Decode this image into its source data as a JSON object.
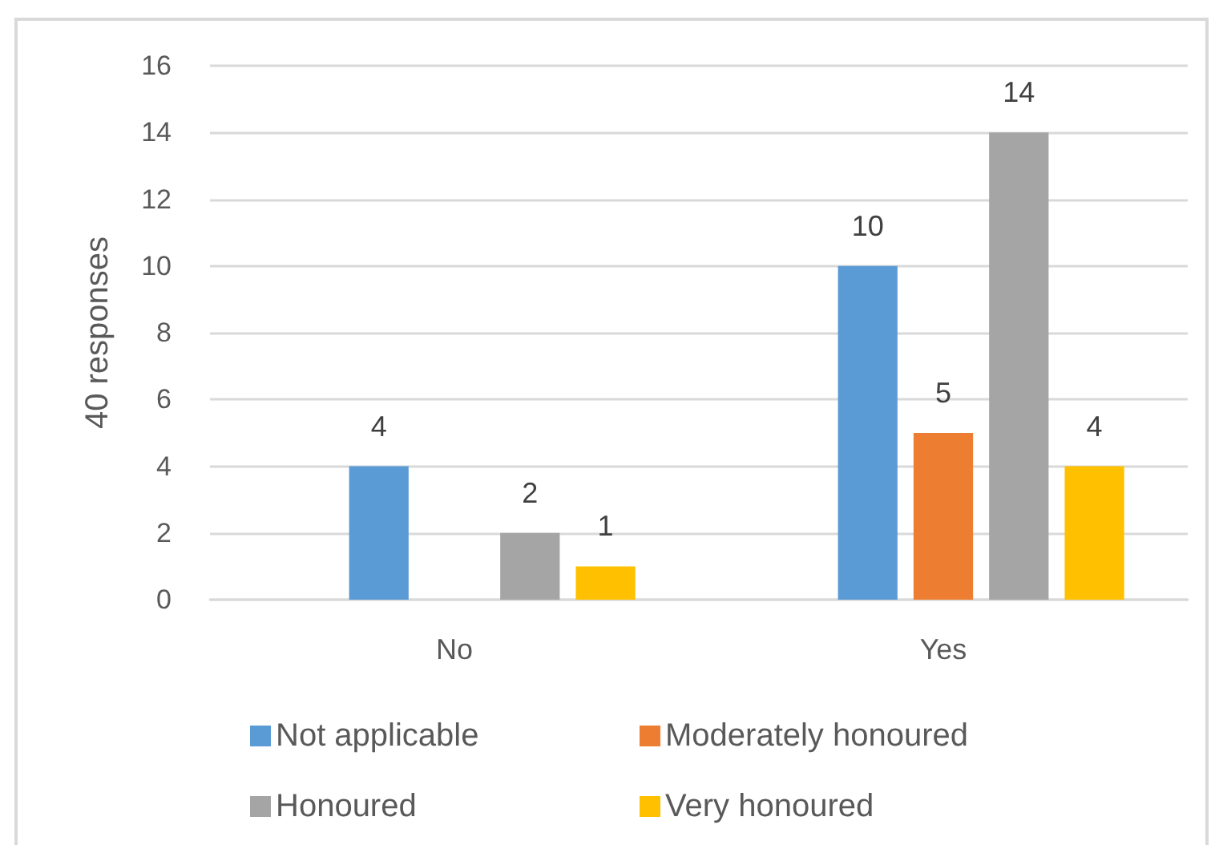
{
  "chart_data": {
    "type": "bar",
    "ylabel": "40 responses",
    "categories": [
      "No",
      "Yes"
    ],
    "series": [
      {
        "name": "Not applicable",
        "color": "#5b9bd5",
        "values": [
          4,
          10
        ]
      },
      {
        "name": "Moderately honoured",
        "color": "#ed7d31",
        "values": [
          null,
          5
        ]
      },
      {
        "name": "Honoured",
        "color": "#a5a5a5",
        "values": [
          2,
          14
        ]
      },
      {
        "name": "Very honoured",
        "color": "#ffc000",
        "values": [
          1,
          4
        ]
      }
    ],
    "ylim": [
      0,
      16
    ],
    "yticks": [
      0,
      2,
      4,
      6,
      8,
      10,
      12,
      14,
      16
    ],
    "grid": "y",
    "legend": "bottom",
    "data_labels": true
  }
}
